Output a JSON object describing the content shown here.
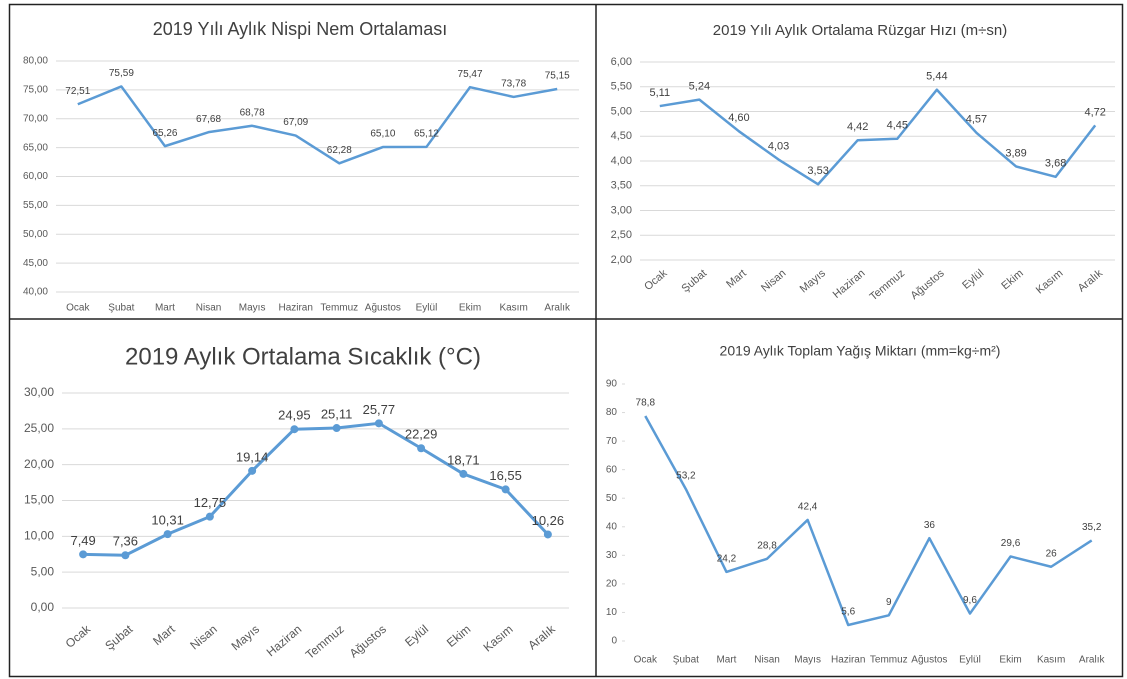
{
  "chart_data": [
    {
      "type": "line",
      "title": "2019 Yılı Aylık Nispi Nem Ortalaması",
      "categories": [
        "Ocak",
        "Şubat",
        "Mart",
        "Nisan",
        "Mayıs",
        "Haziran",
        "Temmuz",
        "Ağustos",
        "Eylül",
        "Ekim",
        "Kasım",
        "Aralık"
      ],
      "values": [
        72.51,
        75.59,
        65.26,
        67.68,
        68.78,
        67.09,
        62.28,
        65.1,
        65.12,
        75.47,
        73.78,
        75.15
      ],
      "value_labels": [
        "72,51",
        "75,59",
        "65,26",
        "67,68",
        "68,78",
        "67,09",
        "62,28",
        "65,10",
        "65,12",
        "75,47",
        "73,78",
        "75,15"
      ],
      "color": "#5b9bd5",
      "markers": false,
      "grid": true,
      "ylim": [
        40,
        80
      ],
      "yticks": [
        {
          "value": 40,
          "label": "40,00"
        },
        {
          "value": 45,
          "label": "45,00"
        },
        {
          "value": 50,
          "label": "50,00"
        },
        {
          "value": 55,
          "label": "55,00"
        },
        {
          "value": 60,
          "label": "60,00"
        },
        {
          "value": 65,
          "label": "65,00"
        },
        {
          "value": 70,
          "label": "70,00"
        },
        {
          "value": 75,
          "label": "75,00"
        },
        {
          "value": 80,
          "label": "80,00"
        }
      ]
    },
    {
      "type": "line",
      "title": "2019 Yılı Aylık Ortalama Rüzgar Hızı (m÷sn)",
      "categories": [
        "Ocak",
        "Şubat",
        "Mart",
        "Nisan",
        "Mayıs",
        "Haziran",
        "Temmuz",
        "Ağustos",
        "Eylül",
        "Ekim",
        "Kasım",
        "Aralık"
      ],
      "values": [
        5.11,
        5.24,
        4.6,
        4.03,
        3.53,
        4.42,
        4.45,
        5.44,
        4.57,
        3.89,
        3.68,
        4.72
      ],
      "value_labels": [
        "5,11",
        "5,24",
        "4,60",
        "4,03",
        "3,53",
        "4,42",
        "4,45",
        "5,44",
        "4,57",
        "3,89",
        "3,68",
        "4,72"
      ],
      "color": "#5b9bd5",
      "markers": false,
      "grid": true,
      "ylim": [
        2,
        6
      ],
      "yticks": [
        {
          "value": 2,
          "label": "2,00"
        },
        {
          "value": 2.5,
          "label": "2,50"
        },
        {
          "value": 3,
          "label": "3,00"
        },
        {
          "value": 3.5,
          "label": "3,50"
        },
        {
          "value": 4,
          "label": "4,00"
        },
        {
          "value": 4.5,
          "label": "4,50"
        },
        {
          "value": 5,
          "label": "5,00"
        },
        {
          "value": 5.5,
          "label": "5,50"
        },
        {
          "value": 6,
          "label": "6,00"
        }
      ]
    },
    {
      "type": "line",
      "title": "2019 Aylık Ortalama Sıcaklık  (°C)",
      "categories": [
        "Ocak",
        "Şubat",
        "Mart",
        "Nisan",
        "Mayıs",
        "Haziran",
        "Temmuz",
        "Ağustos",
        "Eylül",
        "Ekim",
        "Kasım",
        "Aralık"
      ],
      "values": [
        7.49,
        7.36,
        10.31,
        12.75,
        19.14,
        24.95,
        25.11,
        25.77,
        22.29,
        18.71,
        16.55,
        10.26
      ],
      "value_labels": [
        "7,49",
        "7,36",
        "10,31",
        "12,75",
        "19,14",
        "24,95",
        "25,11",
        "25,77",
        "22,29",
        "18,71",
        "16,55",
        "10,26"
      ],
      "color": "#5b9bd5",
      "markers": true,
      "grid": true,
      "ylim": [
        0,
        30
      ],
      "yticks": [
        {
          "value": 0,
          "label": "0,00"
        },
        {
          "value": 5,
          "label": "5,00"
        },
        {
          "value": 10,
          "label": "10,00"
        },
        {
          "value": 15,
          "label": "15,00"
        },
        {
          "value": 20,
          "label": "20,00"
        },
        {
          "value": 25,
          "label": "25,00"
        },
        {
          "value": 30,
          "label": "30,00"
        }
      ]
    },
    {
      "type": "line",
      "title": "2019 Aylık Toplam Yağış Miktarı (mm=kg÷m²)",
      "categories": [
        "Ocak",
        "Şubat",
        "Mart",
        "Nisan",
        "Mayıs",
        "Haziran",
        "Temmuz",
        "Ağustos",
        "Eylül",
        "Ekim",
        "Kasım",
        "Aralık"
      ],
      "values": [
        78.8,
        53.2,
        24.2,
        28.8,
        42.4,
        5.6,
        9,
        36,
        9.6,
        29.6,
        26,
        35.2
      ],
      "value_labels": [
        "78,8",
        "53,2",
        "24,2",
        "28,8",
        "42,4",
        "5,6",
        "9",
        "36",
        "9,6",
        "29,6",
        "26",
        "35,2"
      ],
      "color": "#5b9bd5",
      "markers": false,
      "grid": false,
      "ylim": [
        0,
        90
      ],
      "yticks": [
        0,
        10,
        20,
        30,
        40,
        50,
        60,
        70,
        80,
        90
      ]
    }
  ]
}
